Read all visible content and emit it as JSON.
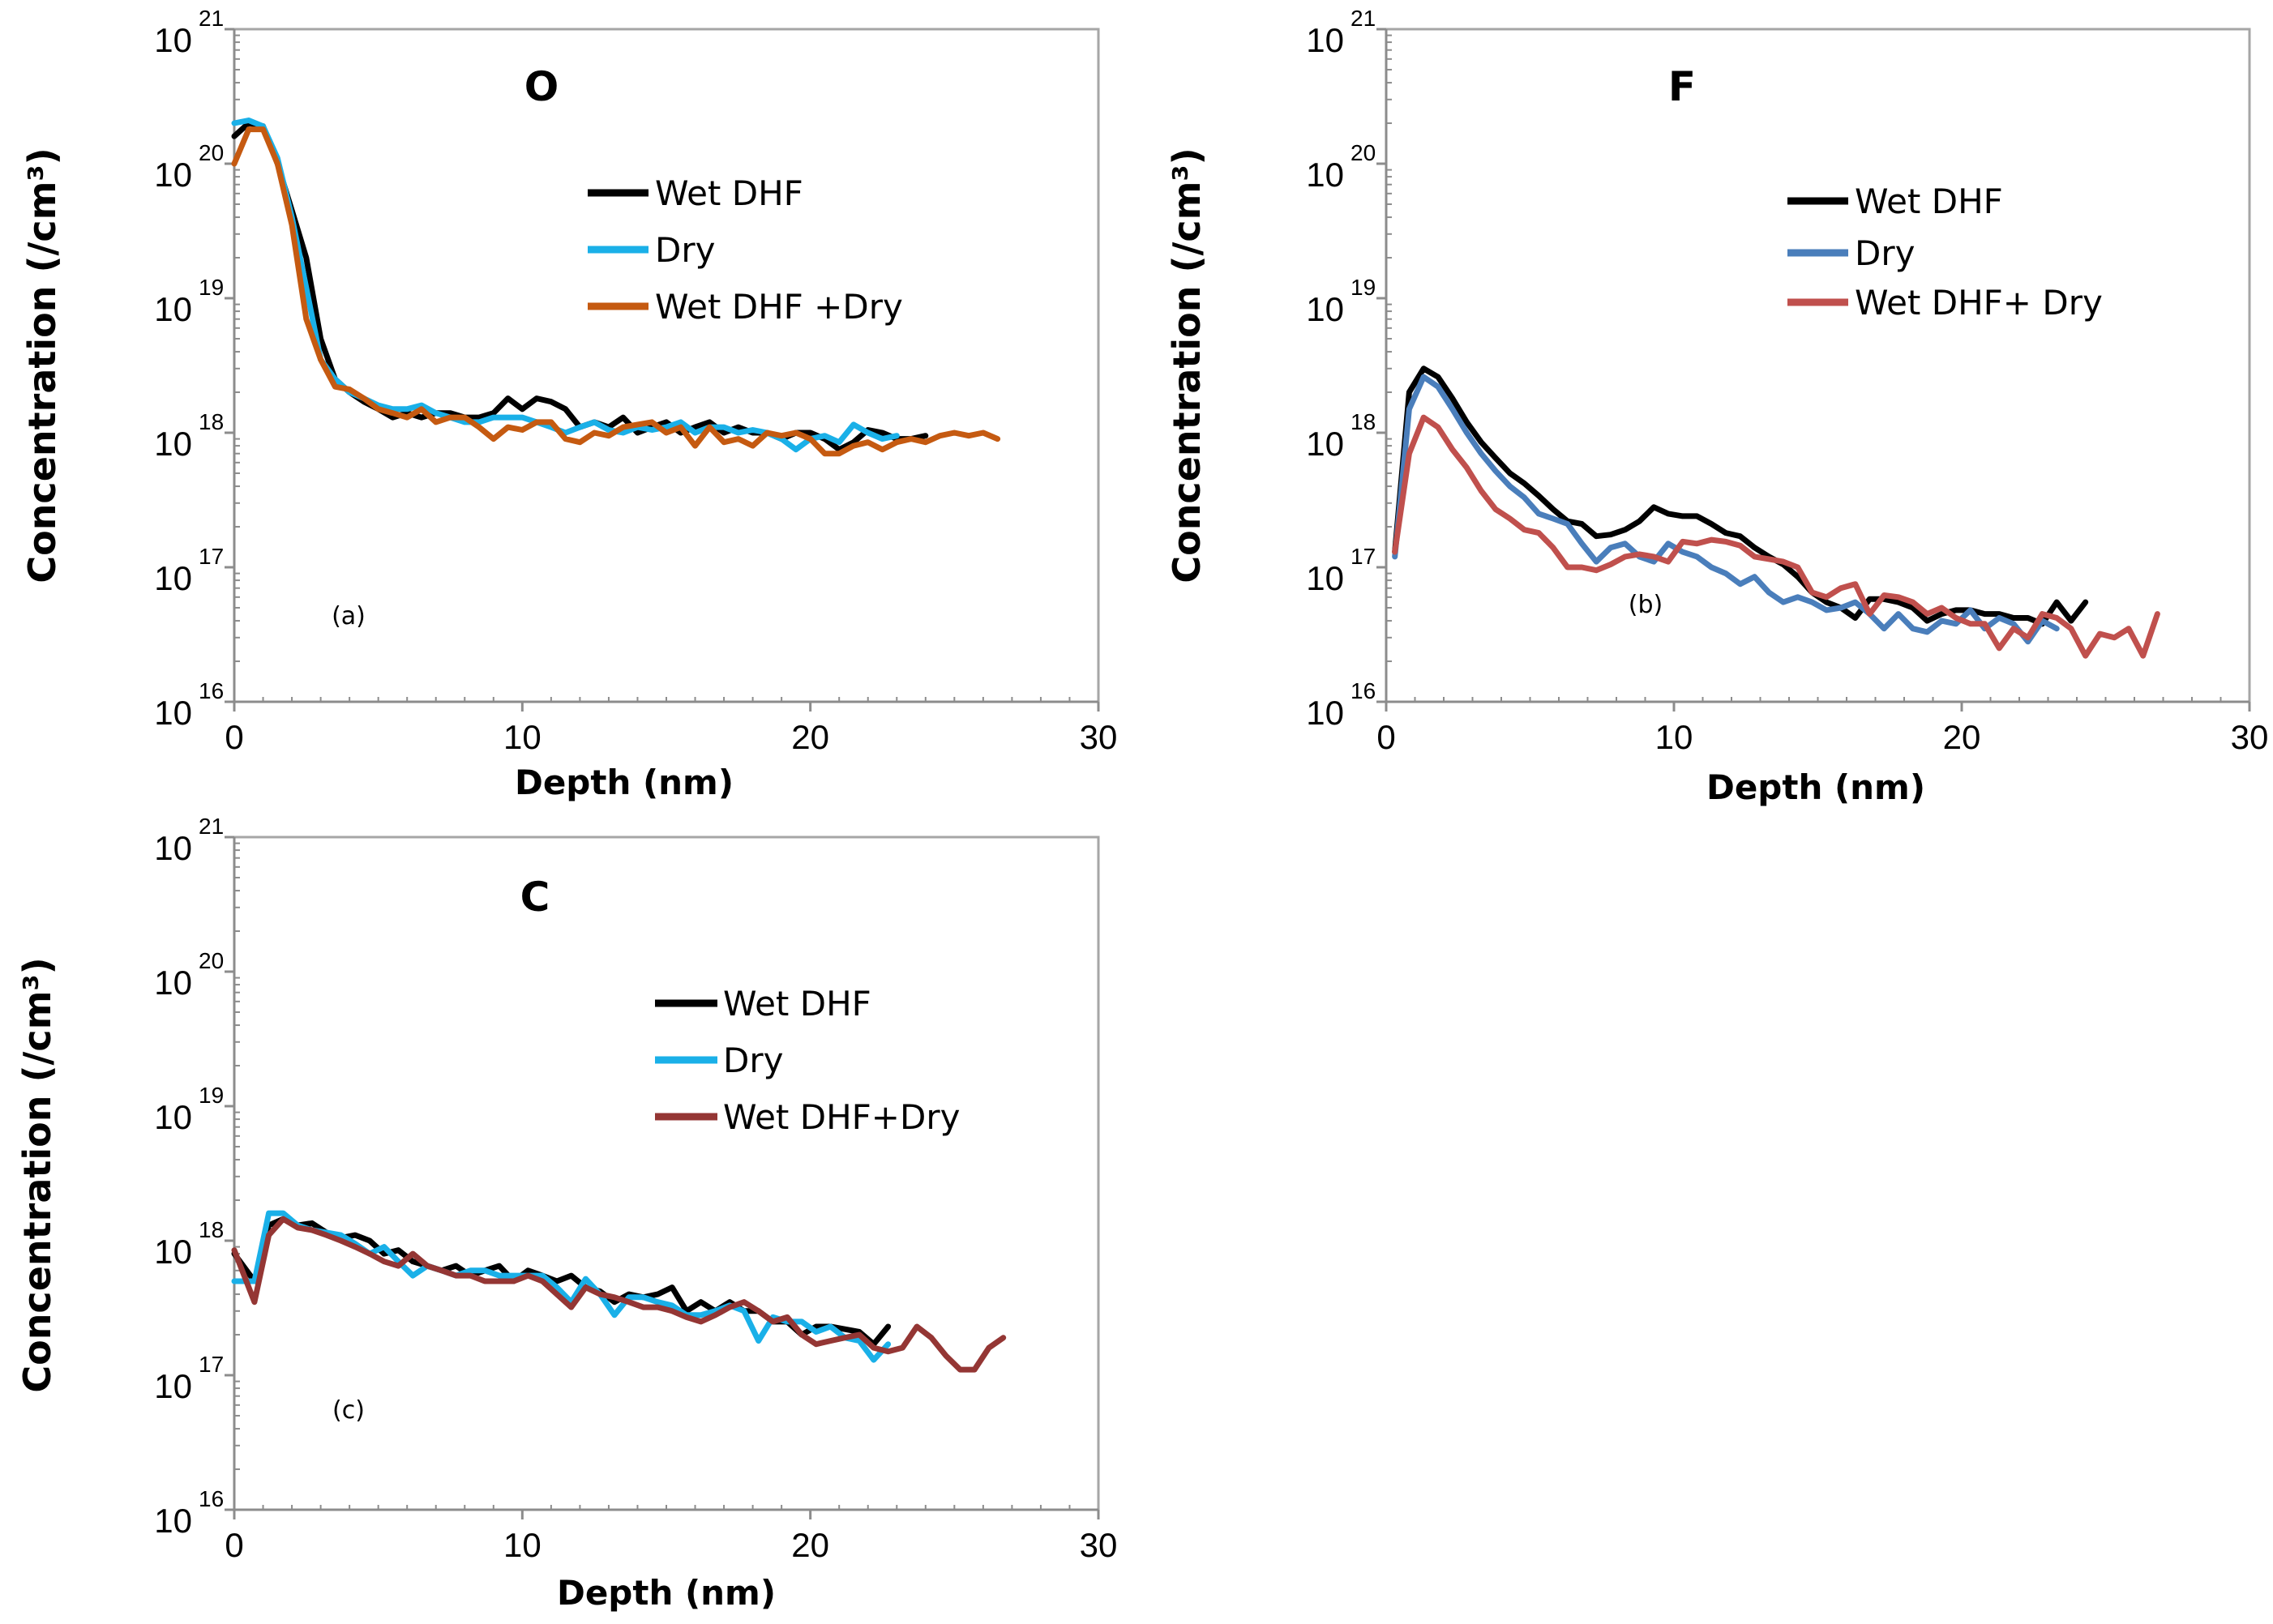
{
  "chart_data": [
    {
      "type": "line",
      "title": "O",
      "annotation": "(a)",
      "xlabel": "Depth (nm)",
      "ylabel": "Concentration (/cm³)",
      "xlim": [
        0,
        30
      ],
      "xticks": [
        0,
        10,
        20,
        30
      ],
      "yscale": "log",
      "ylim": [
        1e+16,
        1e+21
      ],
      "ytick_base": "10",
      "ytick_exponents": [
        "16",
        "17",
        "18",
        "19",
        "20",
        "21"
      ],
      "legend_position": "upper-right",
      "series": [
        {
          "name": "Wet DHF",
          "color": "#000000",
          "x": [
            0,
            0.5,
            1,
            1.5,
            2,
            2.5,
            3,
            3.5,
            4,
            4.5,
            5,
            5.5,
            6,
            6.5,
            7,
            7.5,
            8,
            8.5,
            9,
            9.5,
            10,
            10.5,
            11,
            11.5,
            12,
            12.5,
            13,
            13.5,
            14,
            14.5,
            15,
            15.5,
            16,
            16.5,
            17,
            17.5,
            18,
            18.5,
            19,
            19.5,
            20,
            20.5,
            21,
            21.5,
            22,
            22.5,
            23,
            23.5,
            24
          ],
          "y": [
            1.6e+20,
            2e+20,
            1.9e+20,
            1e+20,
            4.5e+19,
            2e+19,
            5e+18,
            2.5e+18,
            2e+18,
            1.7e+18,
            1.5e+18,
            1.3e+18,
            1.4e+18,
            1.3e+18,
            1.4e+18,
            1.4e+18,
            1.3e+18,
            1.3e+18,
            1.4e+18,
            1.8e+18,
            1.5e+18,
            1.8e+18,
            1.7e+18,
            1.5e+18,
            1.1e+18,
            1.2e+18,
            1.1e+18,
            1.3e+18,
            1e+18,
            1.1e+18,
            1.2e+18,
            1e+18,
            1.1e+18,
            1.2e+18,
            1e+18,
            1.1e+18,
            1e+18,
            1e+18,
            9e+17,
            1e+18,
            1e+18,
            9e+17,
            7.5e+17,
            8.5e+17,
            1.05e+18,
            1e+18,
            9e+17,
            9e+17,
            9.5e+17
          ]
        },
        {
          "name": "Dry",
          "color": "#1ab0e8",
          "x": [
            0,
            0.5,
            1,
            1.5,
            2,
            2.5,
            3,
            3.5,
            4,
            4.5,
            5,
            5.5,
            6,
            6.5,
            7,
            7.5,
            8,
            8.5,
            9,
            9.5,
            10,
            10.5,
            11,
            11.5,
            12,
            12.5,
            13,
            13.5,
            14,
            14.5,
            15,
            15.5,
            16,
            16.5,
            17,
            17.5,
            18,
            18.5,
            19,
            19.5,
            20,
            20.5,
            21,
            21.5,
            22,
            22.5,
            23
          ],
          "y": [
            2e+20,
            2.1e+20,
            1.9e+20,
            1.1e+20,
            4e+19,
            1.2e+19,
            3.5e+18,
            2.5e+18,
            2e+18,
            1.8e+18,
            1.6e+18,
            1.5e+18,
            1.5e+18,
            1.6e+18,
            1.4e+18,
            1.3e+18,
            1.2e+18,
            1.2e+18,
            1.3e+18,
            1.3e+18,
            1.3e+18,
            1.2e+18,
            1.1e+18,
            1e+18,
            1.1e+18,
            1.2e+18,
            1.05e+18,
            1e+18,
            1.1e+18,
            1.05e+18,
            1.1e+18,
            1.2e+18,
            1e+18,
            1.1e+18,
            1.1e+18,
            1e+18,
            1.05e+18,
            1e+18,
            9e+17,
            7.5e+17,
            9e+17,
            9.5e+17,
            8.5e+17,
            1.15e+18,
            1e+18,
            9e+17,
            9.5e+17
          ]
        },
        {
          "name": "Wet DHF +Dry",
          "color": "#c55a11",
          "x": [
            0,
            0.5,
            1,
            1.5,
            2,
            2.5,
            3,
            3.5,
            4,
            4.5,
            5,
            5.5,
            6,
            6.5,
            7,
            7.5,
            8,
            8.5,
            9,
            9.5,
            10,
            10.5,
            11,
            11.5,
            12,
            12.5,
            13,
            13.5,
            14,
            14.5,
            15,
            15.5,
            16,
            16.5,
            17,
            17.5,
            18,
            18.5,
            19,
            19.5,
            20,
            20.5,
            21,
            21.5,
            22,
            22.5,
            23,
            23.5,
            24,
            24.5,
            25,
            25.5,
            26,
            26.5
          ],
          "y": [
            1e+20,
            1.8e+20,
            1.8e+20,
            1e+20,
            3.5e+19,
            7e+18,
            3.5e+18,
            2.2e+18,
            2.1e+18,
            1.8e+18,
            1.5e+18,
            1.4e+18,
            1.3e+18,
            1.5e+18,
            1.2e+18,
            1.3e+18,
            1.3e+18,
            1.1e+18,
            9e+17,
            1.1e+18,
            1.05e+18,
            1.2e+18,
            1.2e+18,
            9e+17,
            8.5e+17,
            1e+18,
            9.5e+17,
            1.1e+18,
            1.15e+18,
            1.2e+18,
            1e+18,
            1.1e+18,
            8e+17,
            1.1e+18,
            8.5e+17,
            9e+17,
            8e+17,
            1e+18,
            9.5e+17,
            1e+18,
            9e+17,
            7e+17,
            7e+17,
            8e+17,
            8.5e+17,
            7.5e+17,
            8.5e+17,
            9e+17,
            8.5e+17,
            9.5e+17,
            1e+18,
            9.5e+17,
            1e+18,
            9e+17
          ]
        }
      ]
    },
    {
      "type": "line",
      "title": "F",
      "annotation": "(b)",
      "xlabel": "Depth (nm)",
      "ylabel": "Concentration (/cm³)",
      "xlim": [
        0,
        30
      ],
      "xticks": [
        0,
        10,
        20,
        30
      ],
      "yscale": "log",
      "ylim": [
        1e+16,
        1e+21
      ],
      "ytick_base": "10",
      "ytick_exponents": [
        "16",
        "17",
        "18",
        "19",
        "20",
        "21"
      ],
      "legend_position": "upper-right",
      "series": [
        {
          "name": "Wet DHF",
          "color": "#000000",
          "x": [
            0.3,
            0.8,
            1.3,
            1.8,
            2.3,
            2.8,
            3.3,
            3.8,
            4.3,
            4.8,
            5.3,
            5.8,
            6.3,
            6.8,
            7.3,
            7.8,
            8.3,
            8.8,
            9.3,
            9.8,
            10.3,
            10.8,
            11.3,
            11.8,
            12.3,
            12.8,
            13.3,
            13.8,
            14.3,
            14.8,
            15.3,
            15.8,
            16.3,
            16.8,
            17.3,
            17.8,
            18.3,
            18.8,
            19.3,
            19.8,
            20.3,
            20.8,
            21.3,
            21.8,
            22.3,
            22.8,
            23.3,
            23.8,
            24.3
          ],
          "y": [
            1.3e+17,
            2e+18,
            3e+18,
            2.6e+18,
            1.8e+18,
            1.2e+18,
            8.5e+17,
            6.5e+17,
            5e+17,
            4.2e+17,
            3.4e+17,
            2.7e+17,
            2.2e+17,
            2.1e+17,
            1.7e+17,
            1.75e+17,
            1.9e+17,
            2.2e+17,
            2.8e+17,
            2.5e+17,
            2.4e+17,
            2.4e+17,
            2.1e+17,
            1.8e+17,
            1.7e+17,
            1.4e+17,
            1.2e+17,
            1.05e+17,
            8.5e+16,
            6.5e+16,
            5.5e+16,
            5e+16,
            4.2e+16,
            5.8e+16,
            5.8e+16,
            5.5e+16,
            5e+16,
            4e+16,
            4.5e+16,
            4.8e+16,
            4.8e+16,
            4.5e+16,
            4.5e+16,
            4.2e+16,
            4.2e+16,
            3.8e+16,
            5.5e+16,
            4e+16,
            5.5e+16
          ]
        },
        {
          "name": "Dry",
          "color": "#4a7ebb",
          "x": [
            0.3,
            0.8,
            1.3,
            1.8,
            2.3,
            2.8,
            3.3,
            3.8,
            4.3,
            4.8,
            5.3,
            5.8,
            6.3,
            6.8,
            7.3,
            7.8,
            8.3,
            8.8,
            9.3,
            9.8,
            10.3,
            10.8,
            11.3,
            11.8,
            12.3,
            12.8,
            13.3,
            13.8,
            14.3,
            14.8,
            15.3,
            15.8,
            16.3,
            16.8,
            17.3,
            17.8,
            18.3,
            18.8,
            19.3,
            19.8,
            20.3,
            20.8,
            21.3,
            21.8,
            22.3,
            22.8,
            23.3
          ],
          "y": [
            1.2e+17,
            1.5e+18,
            2.6e+18,
            2.2e+18,
            1.5e+18,
            1e+18,
            7e+17,
            5.2e+17,
            4e+17,
            3.3e+17,
            2.5e+17,
            2.3e+17,
            2.1e+17,
            1.5e+17,
            1.1e+17,
            1.4e+17,
            1.5e+17,
            1.2e+17,
            1.1e+17,
            1.5e+17,
            1.3e+17,
            1.2e+17,
            1e+17,
            9e+16,
            7.5e+16,
            8.5e+16,
            6.5e+16,
            5.5e+16,
            6e+16,
            5.5e+16,
            4.8e+16,
            5e+16,
            5.5e+16,
            4.5e+16,
            3.5e+16,
            4.5e+16,
            3.5e+16,
            3.3e+16,
            4e+16,
            3.8e+16,
            4.8e+16,
            3.5e+16,
            4.2e+16,
            3.8e+16,
            2.8e+16,
            4e+16,
            3.5e+16
          ]
        },
        {
          "name": "Wet DHF+ Dry",
          "color": "#c0504d",
          "x": [
            0.3,
            0.8,
            1.3,
            1.8,
            2.3,
            2.8,
            3.3,
            3.8,
            4.3,
            4.8,
            5.3,
            5.8,
            6.3,
            6.8,
            7.3,
            7.8,
            8.3,
            8.8,
            9.3,
            9.8,
            10.3,
            10.8,
            11.3,
            11.8,
            12.3,
            12.8,
            13.3,
            13.8,
            14.3,
            14.8,
            15.3,
            15.8,
            16.3,
            16.8,
            17.3,
            17.8,
            18.3,
            18.8,
            19.3,
            19.8,
            20.3,
            20.8,
            21.3,
            21.8,
            22.3,
            22.8,
            23.3,
            23.8,
            24.3,
            24.8,
            25.3,
            25.8,
            26.3,
            26.8
          ],
          "y": [
            1.3e+17,
            7e+17,
            1.3e+18,
            1.1e+18,
            7.5e+17,
            5.5e+17,
            3.7e+17,
            2.7e+17,
            2.3e+17,
            1.9e+17,
            1.8e+17,
            1.4e+17,
            1e+17,
            1e+17,
            9.5e+16,
            1.05e+17,
            1.2e+17,
            1.25e+17,
            1.2e+17,
            1.1e+17,
            1.55e+17,
            1.5e+17,
            1.6e+17,
            1.55e+17,
            1.45e+17,
            1.2e+17,
            1.15e+17,
            1.1e+17,
            1e+17,
            6.5e+16,
            6e+16,
            7e+16,
            7.5e+16,
            4.5e+16,
            6.2e+16,
            6e+16,
            5.5e+16,
            4.5e+16,
            5e+16,
            4.2e+16,
            3.8e+16,
            3.8e+16,
            2.5e+16,
            3.5e+16,
            3e+16,
            4.5e+16,
            4.2e+16,
            3.5e+16,
            2.2e+16,
            3.2e+16,
            3e+16,
            3.5e+16,
            2.2e+16,
            4.5e+16
          ]
        }
      ]
    },
    {
      "type": "line",
      "title": "C",
      "annotation": "(c)",
      "xlabel": "Depth (nm)",
      "ylabel": "Concentration (/cm³)",
      "xlim": [
        0,
        30
      ],
      "xticks": [
        0,
        10,
        20,
        30
      ],
      "yscale": "log",
      "ylim": [
        1e+16,
        1e+21
      ],
      "ytick_base": "10",
      "ytick_exponents": [
        "16",
        "17",
        "18",
        "19",
        "20",
        "21"
      ],
      "legend_position": "upper-right",
      "series": [
        {
          "name": "Wet DHF",
          "color": "#000000",
          "x": [
            0,
            0.7,
            1.2,
            1.7,
            2.2,
            2.7,
            3.2,
            3.7,
            4.2,
            4.7,
            5.2,
            5.7,
            6.2,
            6.7,
            7.2,
            7.7,
            8.2,
            8.7,
            9.2,
            9.7,
            10.2,
            10.7,
            11.2,
            11.7,
            12.2,
            12.7,
            13.2,
            13.7,
            14.2,
            14.7,
            15.2,
            15.7,
            16.2,
            16.7,
            17.2,
            17.7,
            18.2,
            18.7,
            19.2,
            19.7,
            20.2,
            20.7,
            21.2,
            21.7,
            22.2,
            22.7
          ],
          "y": [
            8e+17,
            5e+17,
            1.3e+18,
            1.45e+18,
            1.3e+18,
            1.35e+18,
            1.15e+18,
            1.05e+18,
            1.1e+18,
            1e+18,
            8e+17,
            8.5e+17,
            7e+17,
            6.5e+17,
            6e+17,
            6.5e+17,
            5.5e+17,
            6e+17,
            6.5e+17,
            5e+17,
            6e+17,
            5.5e+17,
            5e+17,
            5.5e+17,
            4.5e+17,
            4.2e+17,
            3.5e+17,
            4e+17,
            3.8e+17,
            4e+17,
            4.5e+17,
            3e+17,
            3.5e+17,
            3e+17,
            3.5e+17,
            3e+17,
            3e+17,
            2.5e+17,
            2.5e+17,
            2e+17,
            2.3e+17,
            2.3e+17,
            2.2e+17,
            2.1e+17,
            1.7e+17,
            2.3e+17
          ]
        },
        {
          "name": "Dry",
          "color": "#1ab0e8",
          "x": [
            0,
            0.7,
            1.2,
            1.7,
            2.2,
            2.7,
            3.2,
            3.7,
            4.2,
            4.7,
            5.2,
            5.7,
            6.2,
            6.7,
            7.2,
            7.7,
            8.2,
            8.7,
            9.2,
            9.7,
            10.2,
            10.7,
            11.2,
            11.7,
            12.2,
            12.7,
            13.2,
            13.7,
            14.2,
            14.7,
            15.2,
            15.7,
            16.2,
            16.7,
            17.2,
            17.7,
            18.2,
            18.7,
            19.2,
            19.7,
            20.2,
            20.7,
            21.2,
            21.7,
            22.2,
            22.7
          ],
          "y": [
            5e+17,
            5e+17,
            1.6e+18,
            1.6e+18,
            1.3e+18,
            1.2e+18,
            1.15e+18,
            1.1e+18,
            9.5e+17,
            8e+17,
            9e+17,
            7e+17,
            5.5e+17,
            6.5e+17,
            6e+17,
            5.5e+17,
            6e+17,
            6e+17,
            5.5e+17,
            5.5e+17,
            5.5e+17,
            5.5e+17,
            4.5e+17,
            3.5e+17,
            5.2e+17,
            4e+17,
            2.8e+17,
            3.8e+17,
            3.8e+17,
            3.5e+17,
            3.3e+17,
            2.8e+17,
            2.8e+17,
            3e+17,
            3.3e+17,
            3e+17,
            1.8e+17,
            2.7e+17,
            2.5e+17,
            2.5e+17,
            2.1e+17,
            2.3e+17,
            1.9e+17,
            1.8e+17,
            1.3e+17,
            1.7e+17
          ]
        },
        {
          "name": "Wet DHF+Dry",
          "color": "#943634",
          "x": [
            0,
            0.7,
            1.2,
            1.7,
            2.2,
            2.7,
            3.2,
            3.7,
            4.2,
            4.7,
            5.2,
            5.7,
            6.2,
            6.7,
            7.2,
            7.7,
            8.2,
            8.7,
            9.2,
            9.7,
            10.2,
            10.7,
            11.2,
            11.7,
            12.2,
            12.7,
            13.2,
            13.7,
            14.2,
            14.7,
            15.2,
            15.7,
            16.2,
            16.7,
            17.2,
            17.7,
            18.2,
            18.7,
            19.2,
            19.7,
            20.2,
            20.7,
            21.2,
            21.7,
            22.2,
            22.7,
            23.2,
            23.7,
            24.2,
            24.7,
            25.2,
            25.7,
            26.2,
            26.7
          ],
          "y": [
            8.5e+17,
            3.5e+17,
            1.1e+18,
            1.45e+18,
            1.25e+18,
            1.2e+18,
            1.1e+18,
            1e+18,
            9e+17,
            8e+17,
            7e+17,
            6.5e+17,
            8e+17,
            6.5e+17,
            6e+17,
            5.5e+17,
            5.5e+17,
            5e+17,
            5e+17,
            5e+17,
            5.5e+17,
            5e+17,
            4e+17,
            3.2e+17,
            4.5e+17,
            4e+17,
            3.8e+17,
            3.5e+17,
            3.2e+17,
            3.2e+17,
            3e+17,
            2.7e+17,
            2.5e+17,
            2.8e+17,
            3.2e+17,
            3.5e+17,
            3e+17,
            2.5e+17,
            2.7e+17,
            2e+17,
            1.7e+17,
            1.8e+17,
            1.9e+17,
            2e+17,
            1.6e+17,
            1.5e+17,
            1.6e+17,
            2.3e+17,
            1.9e+17,
            1.4e+17,
            1.1e+17,
            1.1e+17,
            1.6e+17,
            1.9e+17
          ]
        }
      ]
    }
  ]
}
